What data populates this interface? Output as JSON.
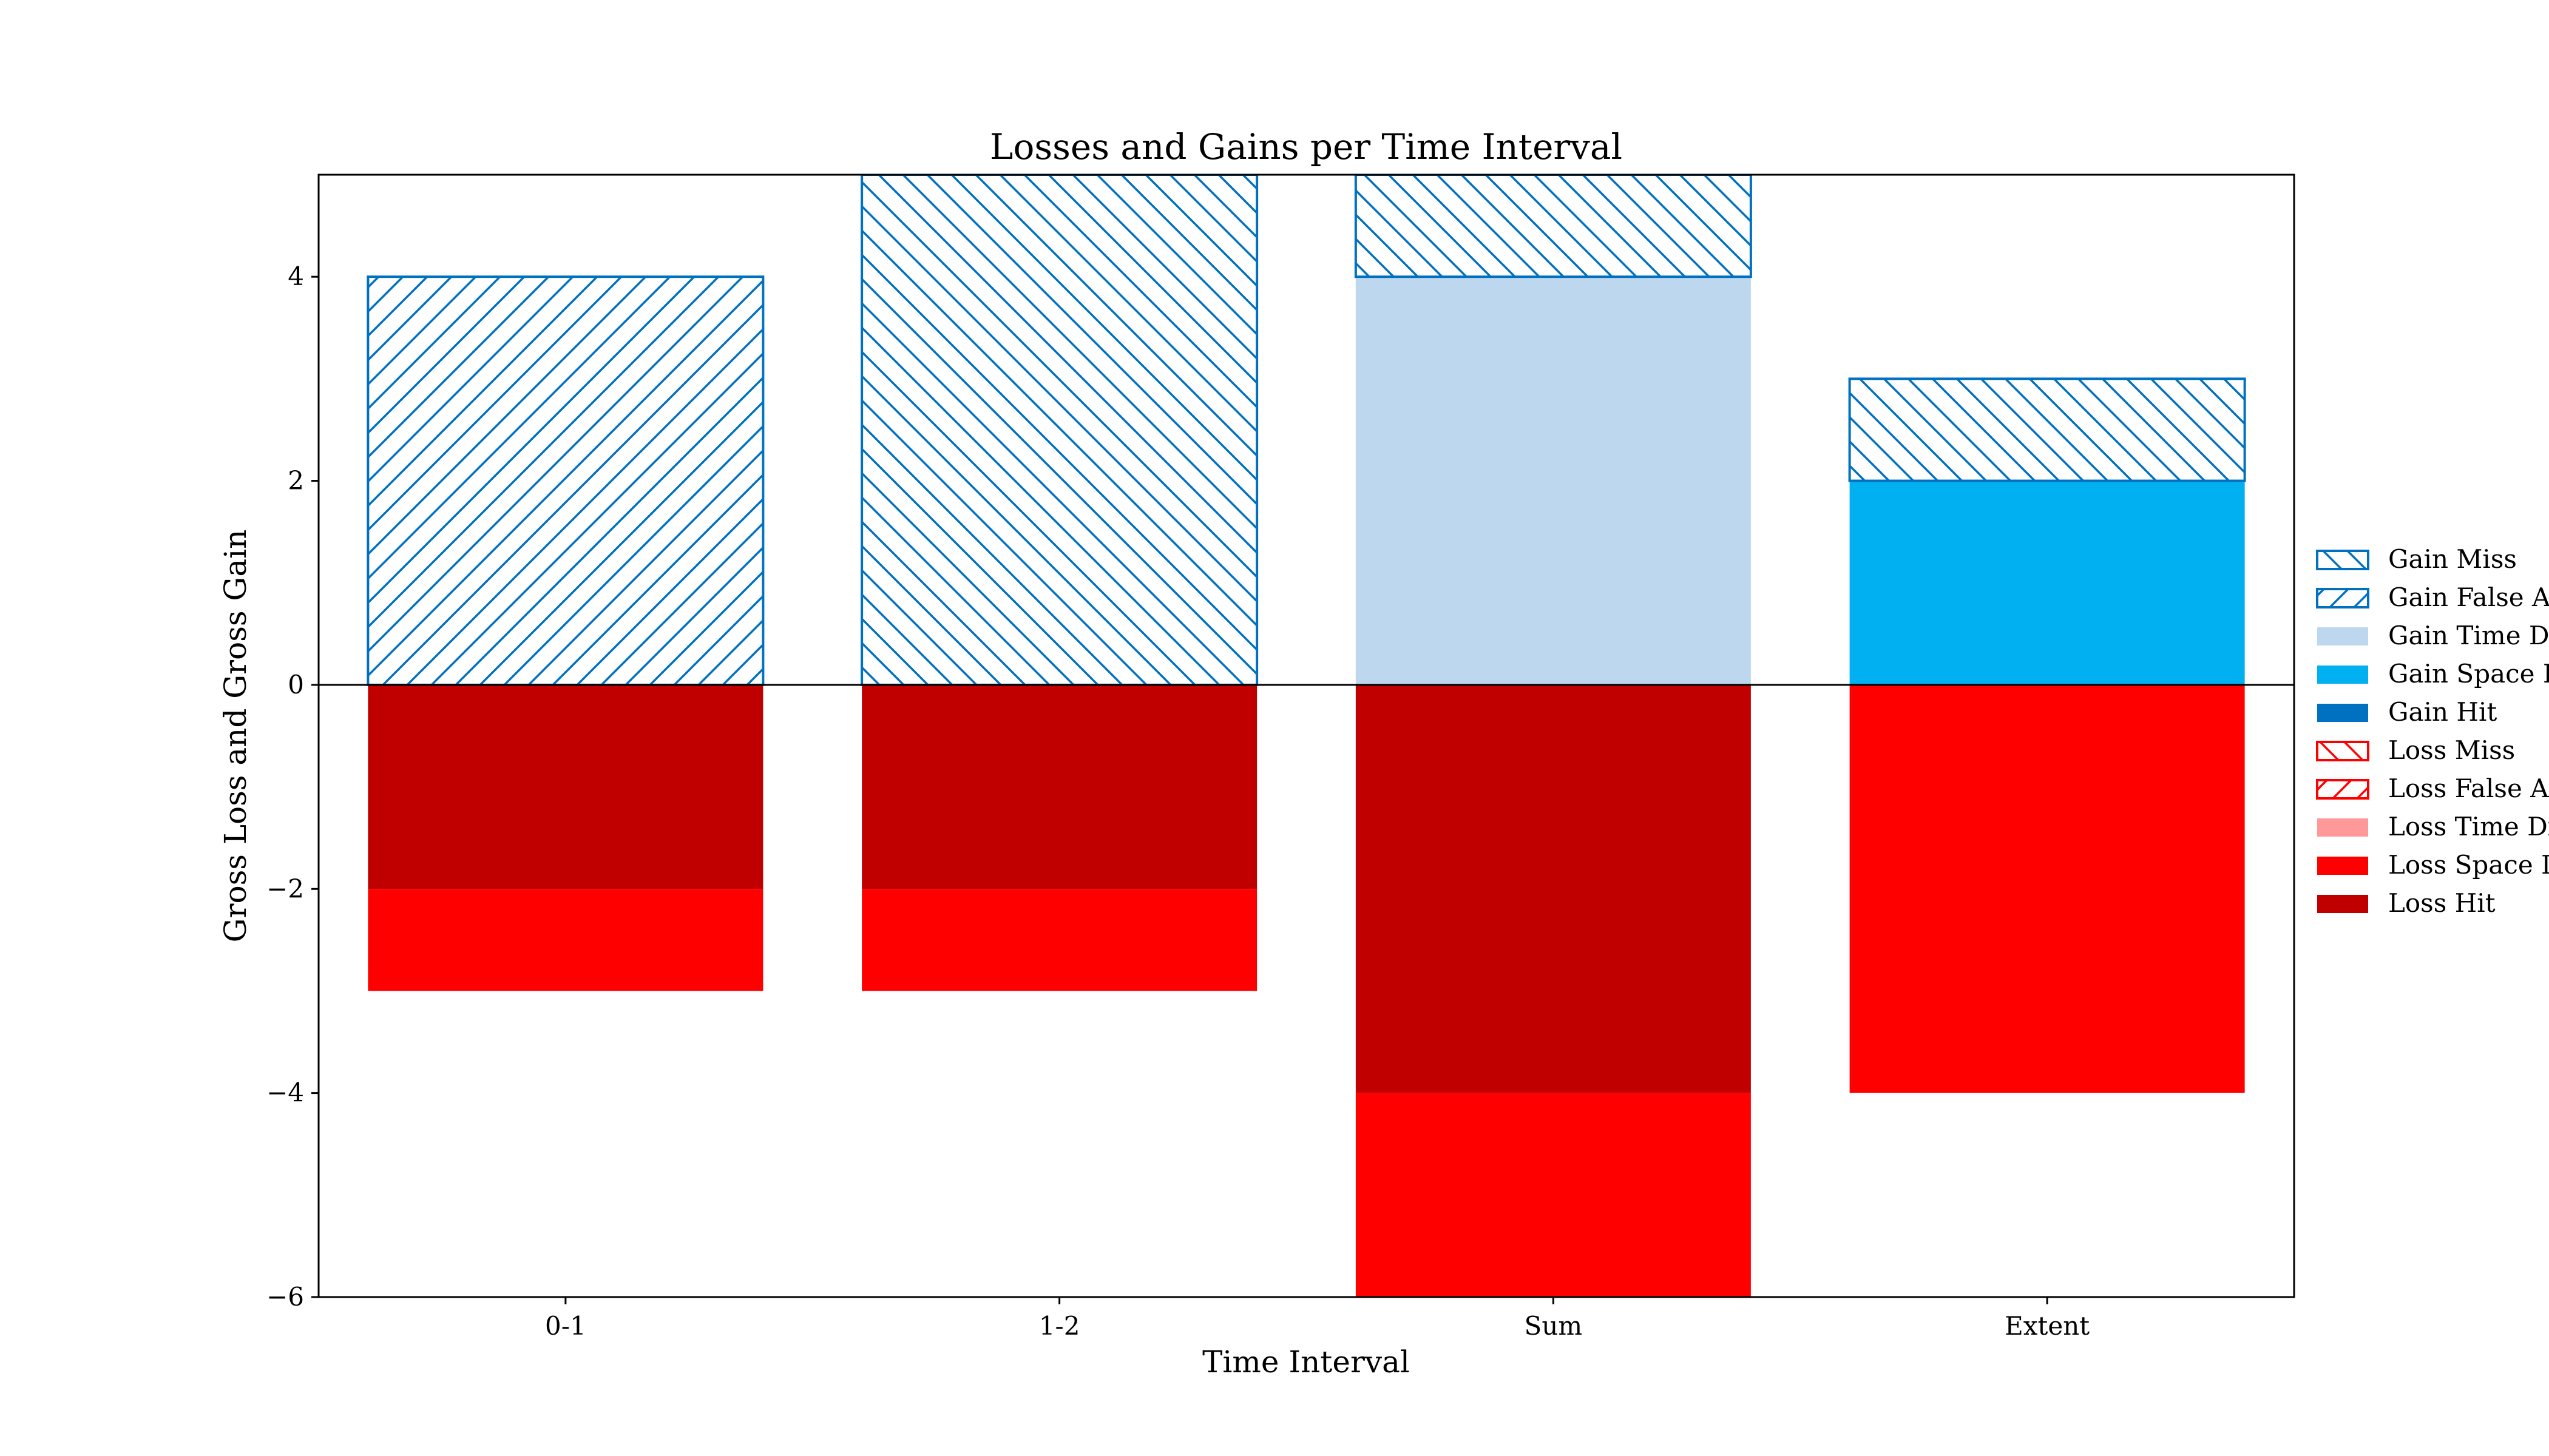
{
  "chart_data": {
    "type": "bar",
    "title": "Losses and Gains per Time Interval",
    "xlabel": "Time Interval",
    "ylabel": "Gross Loss and Gross Gain",
    "categories": [
      "0-1",
      "1-2",
      "Sum",
      "Extent"
    ],
    "ylim": [
      -6,
      5
    ],
    "yticks": [
      -6,
      -4,
      -2,
      0,
      2,
      4
    ],
    "ytick_labels": [
      "−6",
      "−4",
      "−2",
      "0",
      "2",
      "4"
    ],
    "grid": false,
    "legend_position": "right, outside plot",
    "series": [
      {
        "name": "Gain Hit",
        "color": "#0070c0",
        "hatch": "none",
        "values": [
          0,
          0,
          0,
          0
        ]
      },
      {
        "name": "Gain Space Displacement",
        "color": "#00b0f0",
        "hatch": "none",
        "values": [
          0,
          0,
          0,
          2
        ]
      },
      {
        "name": "Gain Time Displacement",
        "color": "#bdd7ee",
        "hatch": "none",
        "values": [
          0,
          0,
          4,
          0
        ]
      },
      {
        "name": "Gain False Alarm",
        "color": "#0070c0",
        "hatch": "forward",
        "values": [
          4,
          0,
          0,
          0
        ]
      },
      {
        "name": "Gain Miss",
        "color": "#0070c0",
        "hatch": "back",
        "values": [
          0,
          5,
          1,
          1
        ]
      },
      {
        "name": "Loss Hit",
        "color": "#c00000",
        "hatch": "none",
        "values": [
          -2,
          -2,
          -4,
          0
        ]
      },
      {
        "name": "Loss Space Displacement",
        "color": "#ff0000",
        "hatch": "none",
        "values": [
          -1,
          -1,
          -2,
          -4
        ]
      },
      {
        "name": "Loss Time Displacement",
        "color": "#ff9999",
        "hatch": "none",
        "values": [
          0,
          0,
          0,
          0
        ]
      },
      {
        "name": "Loss False Alarm",
        "color": "#ff0000",
        "hatch": "forward",
        "values": [
          0,
          0,
          0,
          0
        ]
      },
      {
        "name": "Loss Miss",
        "color": "#ff0000",
        "hatch": "back",
        "values": [
          0,
          0,
          0,
          0
        ]
      }
    ],
    "legend_order": [
      "Gain Miss",
      "Gain False Alarm",
      "Gain Time Displacement",
      "Gain Space Displacement",
      "Gain Hit",
      "Loss Miss",
      "Loss False Alarm",
      "Loss Time Displacement",
      "Loss Space Displacement",
      "Loss Hit"
    ]
  }
}
